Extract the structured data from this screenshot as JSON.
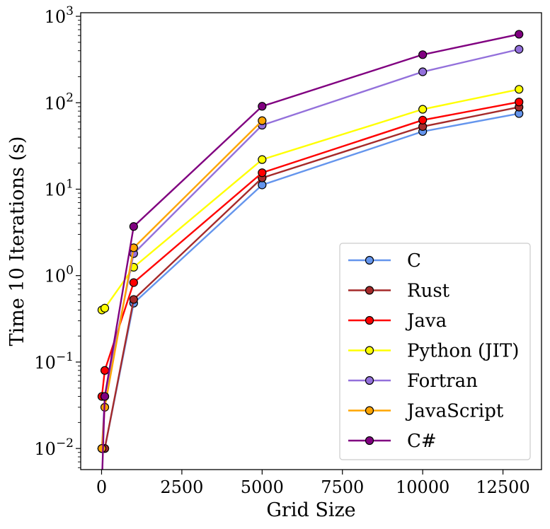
{
  "chart_data": {
    "type": "line",
    "title": "",
    "xlabel": "Grid Size",
    "ylabel": "Time 10 Iterations (s)",
    "yscale": "log",
    "xlim": [
      -650,
      13700
    ],
    "ylim": [
      0.0057,
      1100
    ],
    "x_ticks": [
      0,
      2500,
      5000,
      7500,
      10000,
      12500
    ],
    "x_tick_labels": [
      "0",
      "2500",
      "5000",
      "7500",
      "10000",
      "12500"
    ],
    "y_ticks": [
      0.01,
      0.1,
      1,
      10,
      100,
      1000
    ],
    "y_tick_labels": [
      {
        "base": "10",
        "exp": "−2"
      },
      {
        "base": "10",
        "exp": "−1"
      },
      {
        "base": "10",
        "exp": "0"
      },
      {
        "base": "10",
        "exp": "1"
      },
      {
        "base": "10",
        "exp": "2"
      },
      {
        "base": "10",
        "exp": "3"
      }
    ],
    "grid": false,
    "legend_position": "lower-right",
    "series": [
      {
        "name": "C",
        "color": "#6495ED",
        "marker": "circle",
        "x": [
          10,
          100,
          1000,
          5000,
          10000,
          13000
        ],
        "y": [
          0.01,
          0.01,
          0.48,
          11.2,
          46.5,
          75
        ]
      },
      {
        "name": "Rust",
        "color": "#A52A2A",
        "marker": "circle",
        "x": [
          10,
          100,
          1000,
          5000,
          10000,
          13000
        ],
        "y": [
          0.01,
          0.01,
          0.53,
          13.5,
          53,
          89
        ]
      },
      {
        "name": "Java",
        "color": "#FF0000",
        "marker": "circle",
        "x": [
          10,
          100,
          1000,
          5000,
          10000,
          13000
        ],
        "y": [
          0.04,
          0.08,
          0.83,
          15.5,
          63,
          102
        ]
      },
      {
        "name": "Python (JIT)",
        "color": "#FFFF00",
        "marker": "circle",
        "x": [
          10,
          100,
          1000,
          5000,
          10000,
          13000
        ],
        "y": [
          0.4,
          0.42,
          1.25,
          22,
          84,
          143
        ]
      },
      {
        "name": "Fortran",
        "color": "#9370DB",
        "marker": "circle",
        "x": [
          10,
          100,
          1000,
          5000,
          10000,
          13000
        ],
        "y": [
          0.01,
          0.04,
          1.8,
          55,
          228,
          415
        ]
      },
      {
        "name": "JavaScript",
        "color": "#FFA500",
        "marker": "circle",
        "x": [
          10,
          100,
          1000,
          5000,
          10000,
          13000
        ],
        "y": [
          0.01,
          0.03,
          2.1,
          62,
          null,
          null
        ]
      },
      {
        "name": "C#",
        "color": "#800080",
        "marker": "circle",
        "x": [
          10,
          100,
          1000,
          5000,
          10000,
          13000
        ],
        "y": [
          0.004,
          0.04,
          3.7,
          91,
          360,
          620
        ]
      }
    ]
  }
}
